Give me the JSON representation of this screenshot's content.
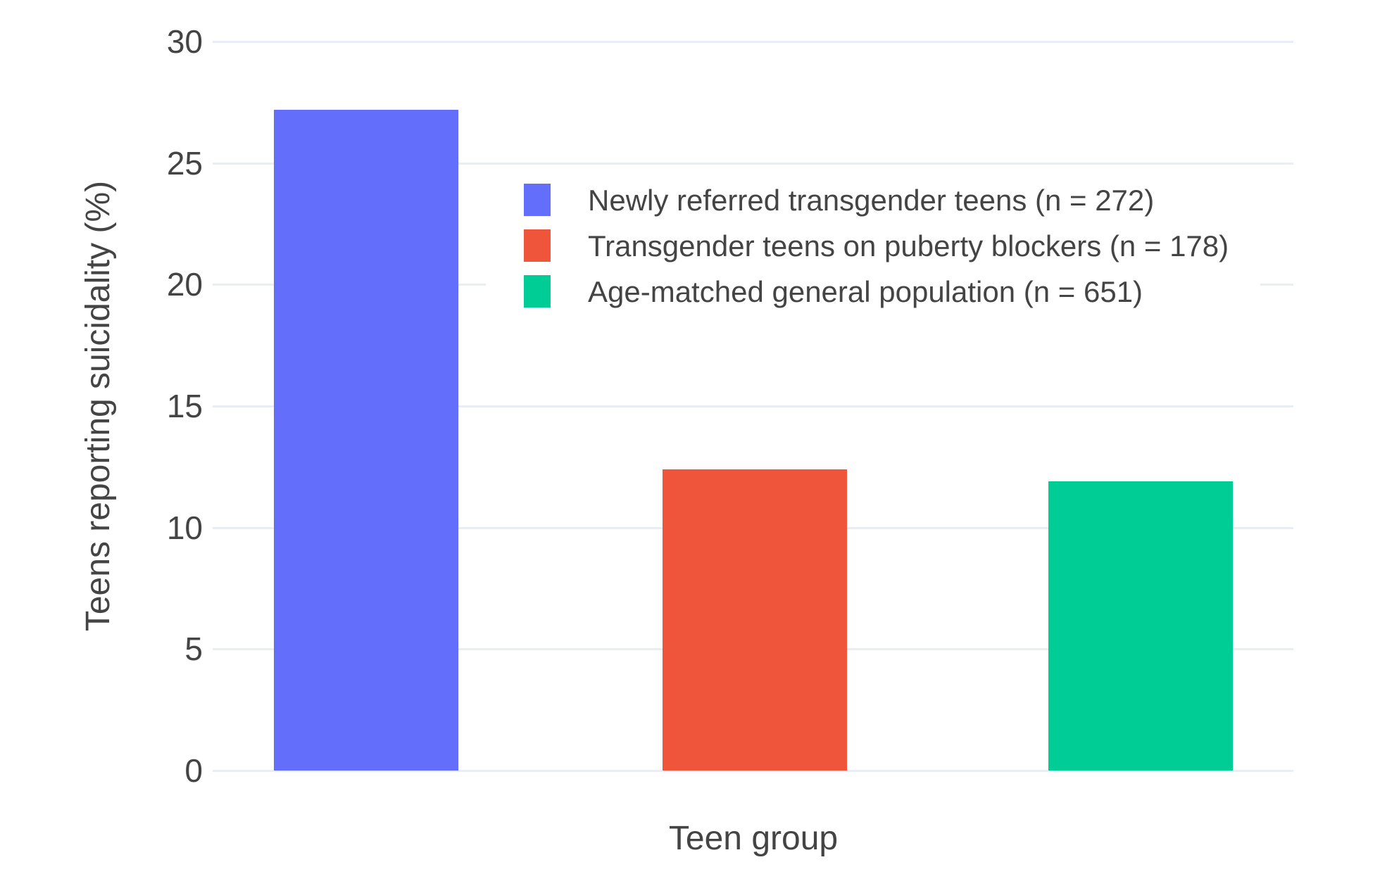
{
  "chart_data": {
    "type": "bar",
    "categories": [
      "Newly referred transgender teens (n = 272)",
      "Transgender teens on puberty blockers (n = 178)",
      "Age-matched general population (n = 651)"
    ],
    "values": [
      27.2,
      12.4,
      11.9
    ],
    "colors": [
      "#636EFA",
      "#EF553B",
      "#00CC96"
    ],
    "title": "",
    "xlabel": "Teen group",
    "ylabel": "Teens reporting suicidality (%)",
    "ylim": [
      0,
      30
    ],
    "yticks": [
      0,
      5,
      10,
      15,
      20,
      25,
      30
    ],
    "grid": true,
    "grid_color": "#E9EEF6",
    "background_color": "#FFFFFF",
    "text_color": "#444444",
    "legend_position": "inside-top-right",
    "legend": [
      {
        "label": "Newly referred transgender teens (n = 272)",
        "color": "#636EFA"
      },
      {
        "label": "Transgender teens on puberty blockers (n = 178)",
        "color": "#EF553B"
      },
      {
        "label": "Age-matched general population (n = 651)",
        "color": "#00CC96"
      }
    ]
  }
}
